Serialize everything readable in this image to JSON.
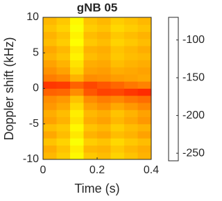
{
  "chart_data": {
    "type": "heatmap",
    "title": "gNB 05",
    "x_label": "Time (s)",
    "y_label": "Doppler shift (kHz)",
    "colormap": "jet",
    "x": [
      0.025,
      0.075,
      0.125,
      0.175,
      0.225,
      0.275,
      0.325,
      0.375
    ],
    "y": [
      -9.5,
      -8.5,
      -7.5,
      -6.5,
      -5.5,
      -4.5,
      -3.5,
      -2.5,
      -1.5,
      -0.5,
      0.5,
      1.5,
      2.5,
      3.5,
      4.5,
      5.5,
      6.5,
      7.5,
      8.5,
      9.5
    ],
    "values": [
      [
        -128,
        -132,
        -140,
        -131,
        -129,
        -133,
        -130,
        -127
      ],
      [
        -126,
        -130,
        -138,
        -128,
        -127,
        -131,
        -128,
        -126
      ],
      [
        -130,
        -133,
        -142,
        -132,
        -130,
        -134,
        -131,
        -129
      ],
      [
        -125,
        -129,
        -137,
        -127,
        -125,
        -129,
        -127,
        -124
      ],
      [
        -129,
        -131,
        -140,
        -130,
        -128,
        -132,
        -129,
        -127
      ],
      [
        -124,
        -127,
        -136,
        -126,
        -124,
        -128,
        -125,
        -122
      ],
      [
        -126,
        -129,
        -138,
        -128,
        -126,
        -130,
        -127,
        -124
      ],
      [
        -122,
        -125,
        -134,
        -124,
        -121,
        -125,
        -122,
        -119
      ],
      [
        -120,
        -122,
        -130,
        -120,
        -117,
        -119,
        -116,
        -114
      ],
      [
        -112,
        -113,
        -120,
        -110,
        -106,
        -107,
        -104,
        -102
      ],
      [
        -104,
        -105,
        -112,
        -107,
        -110,
        -113,
        -116,
        -118
      ],
      [
        -117,
        -119,
        -127,
        -120,
        -121,
        -123,
        -124,
        -125
      ],
      [
        -121,
        -124,
        -133,
        -124,
        -123,
        -126,
        -125,
        -124
      ],
      [
        -124,
        -127,
        -136,
        -126,
        -125,
        -129,
        -127,
        -126
      ],
      [
        -127,
        -130,
        -139,
        -129,
        -127,
        -131,
        -129,
        -128
      ],
      [
        -125,
        -128,
        -137,
        -127,
        -126,
        -130,
        -128,
        -126
      ],
      [
        -129,
        -132,
        -141,
        -131,
        -129,
        -133,
        -131,
        -129
      ],
      [
        -127,
        -130,
        -139,
        -129,
        -127,
        -131,
        -129,
        -127
      ],
      [
        -130,
        -133,
        -142,
        -132,
        -130,
        -134,
        -132,
        -130
      ],
      [
        -128,
        -131,
        -140,
        -130,
        -128,
        -132,
        -130,
        -128
      ]
    ],
    "xlim": [
      0,
      0.4
    ],
    "xticks": [
      0,
      0.2,
      0.4
    ],
    "ylim": [
      -10,
      10
    ],
    "yticks": [
      -10,
      -5,
      0,
      5,
      10
    ],
    "clim": [
      -260,
      -70
    ],
    "cticks": [
      -250,
      -200,
      -150,
      -100
    ]
  }
}
